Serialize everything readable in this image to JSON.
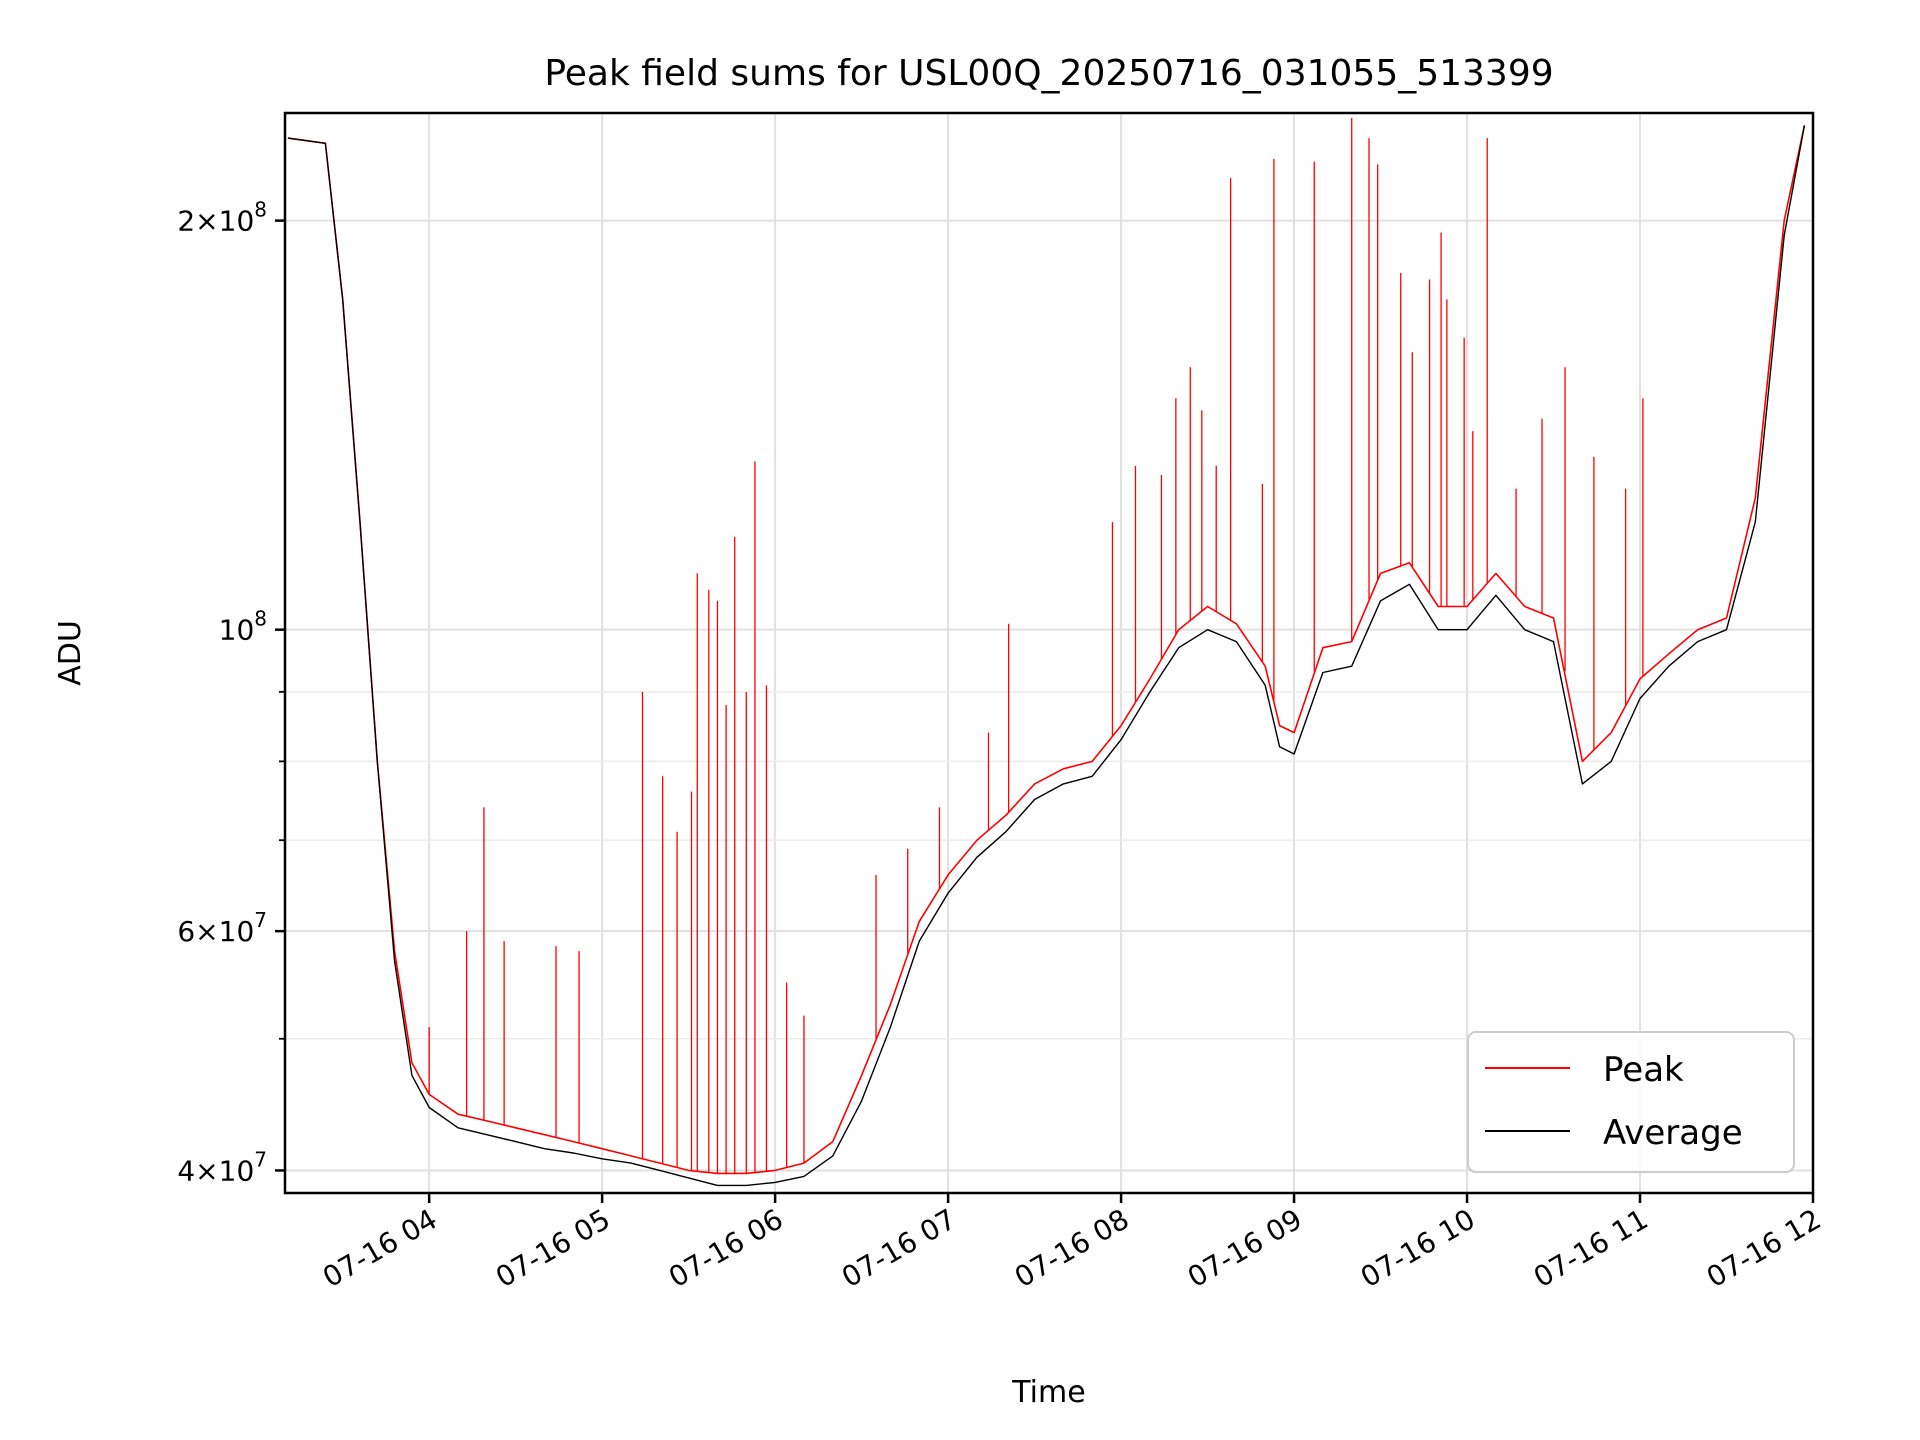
{
  "chart_data": {
    "type": "line",
    "title": "Peak field sums for USL00Q_20250716_031055_513399",
    "xlabel": "Time",
    "ylabel": "ADU",
    "x_scale": "time",
    "y_scale": "log",
    "xlim": [
      "2025-07-16 03:10",
      "2025-07-16 12:00"
    ],
    "ylim": [
      38500000,
      240000000
    ],
    "x_ticks": [
      {
        "time": "2025-07-16 04:00",
        "label": "07-16 04"
      },
      {
        "time": "2025-07-16 05:00",
        "label": "07-16 05"
      },
      {
        "time": "2025-07-16 06:00",
        "label": "07-16 06"
      },
      {
        "time": "2025-07-16 07:00",
        "label": "07-16 07"
      },
      {
        "time": "2025-07-16 08:00",
        "label": "07-16 08"
      },
      {
        "time": "2025-07-16 09:00",
        "label": "07-16 09"
      },
      {
        "time": "2025-07-16 10:00",
        "label": "07-16 10"
      },
      {
        "time": "2025-07-16 11:00",
        "label": "07-16 11"
      },
      {
        "time": "2025-07-16 12:00",
        "label": "07-16 12"
      }
    ],
    "y_major_ticks": [
      {
        "value": 40000000,
        "mantissa": "4",
        "exponent": "7"
      },
      {
        "value": 60000000,
        "mantissa": "6",
        "exponent": "7"
      },
      {
        "value": 100000000,
        "mantissa": "",
        "exponent": "8"
      },
      {
        "value": 200000000,
        "mantissa": "2",
        "exponent": "8"
      }
    ],
    "y_minor_gridlines": [
      50000000,
      70000000,
      80000000,
      90000000
    ],
    "grid": true,
    "legend_position": "lower-right",
    "series": [
      {
        "name": "Peak",
        "color": "#ff0000",
        "x": [
          "2025-07-16 03:11",
          "2025-07-16 03:24",
          "2025-07-16 03:30",
          "2025-07-16 03:36",
          "2025-07-16 03:42",
          "2025-07-16 03:48",
          "2025-07-16 03:54",
          "2025-07-16 04:00",
          "2025-07-16 04:10",
          "2025-07-16 04:20",
          "2025-07-16 04:30",
          "2025-07-16 04:40",
          "2025-07-16 04:50",
          "2025-07-16 05:00",
          "2025-07-16 05:10",
          "2025-07-16 05:20",
          "2025-07-16 05:30",
          "2025-07-16 05:40",
          "2025-07-16 05:50",
          "2025-07-16 06:00",
          "2025-07-16 06:10",
          "2025-07-16 06:20",
          "2025-07-16 06:30",
          "2025-07-16 06:40",
          "2025-07-16 06:50",
          "2025-07-16 07:00",
          "2025-07-16 07:10",
          "2025-07-16 07:20",
          "2025-07-16 07:30",
          "2025-07-16 07:40",
          "2025-07-16 07:50",
          "2025-07-16 08:00",
          "2025-07-16 08:10",
          "2025-07-16 08:20",
          "2025-07-16 08:30",
          "2025-07-16 08:40",
          "2025-07-16 08:50",
          "2025-07-16 08:55",
          "2025-07-16 09:00",
          "2025-07-16 09:10",
          "2025-07-16 09:20",
          "2025-07-16 09:30",
          "2025-07-16 09:40",
          "2025-07-16 09:50",
          "2025-07-16 10:00",
          "2025-07-16 10:10",
          "2025-07-16 10:20",
          "2025-07-16 10:30",
          "2025-07-16 10:40",
          "2025-07-16 10:50",
          "2025-07-16 11:00",
          "2025-07-16 11:10",
          "2025-07-16 11:20",
          "2025-07-16 11:30",
          "2025-07-16 11:40",
          "2025-07-16 11:50",
          "2025-07-16 11:57"
        ],
        "values": [
          230000000,
          228000000,
          175000000,
          120000000,
          80000000,
          58000000,
          48000000,
          45500000,
          44000000,
          43500000,
          43000000,
          42500000,
          42000000,
          41500000,
          41000000,
          40500000,
          40000000,
          39800000,
          39800000,
          40000000,
          40500000,
          42000000,
          47000000,
          53000000,
          61000000,
          66000000,
          70000000,
          73000000,
          77000000,
          79000000,
          80000000,
          85000000,
          92000000,
          100000000,
          104000000,
          101000000,
          94000000,
          85000000,
          84000000,
          97000000,
          98000000,
          110000000,
          112000000,
          104000000,
          104000000,
          110000000,
          104000000,
          102000000,
          80000000,
          84000000,
          92000000,
          96000000,
          100000000,
          102000000,
          125000000,
          200000000,
          235000000
        ],
        "spikes": [
          {
            "x": "2025-07-16 04:00",
            "y": 51000000
          },
          {
            "x": "2025-07-16 04:13",
            "y": 60000000
          },
          {
            "x": "2025-07-16 04:19",
            "y": 74000000
          },
          {
            "x": "2025-07-16 04:26",
            "y": 59000000
          },
          {
            "x": "2025-07-16 04:44",
            "y": 58500000
          },
          {
            "x": "2025-07-16 04:52",
            "y": 58000000
          },
          {
            "x": "2025-07-16 05:14",
            "y": 90000000
          },
          {
            "x": "2025-07-16 05:21",
            "y": 78000000
          },
          {
            "x": "2025-07-16 05:26",
            "y": 71000000
          },
          {
            "x": "2025-07-16 05:31",
            "y": 76000000
          },
          {
            "x": "2025-07-16 05:33",
            "y": 110000000
          },
          {
            "x": "2025-07-16 05:37",
            "y": 107000000
          },
          {
            "x": "2025-07-16 05:40",
            "y": 105000000
          },
          {
            "x": "2025-07-16 05:43",
            "y": 88000000
          },
          {
            "x": "2025-07-16 05:46",
            "y": 117000000
          },
          {
            "x": "2025-07-16 05:50",
            "y": 90000000
          },
          {
            "x": "2025-07-16 05:53",
            "y": 133000000
          },
          {
            "x": "2025-07-16 05:57",
            "y": 91000000
          },
          {
            "x": "2025-07-16 06:04",
            "y": 55000000
          },
          {
            "x": "2025-07-16 06:10",
            "y": 52000000
          },
          {
            "x": "2025-07-16 06:35",
            "y": 66000000
          },
          {
            "x": "2025-07-16 06:46",
            "y": 69000000
          },
          {
            "x": "2025-07-16 06:57",
            "y": 74000000
          },
          {
            "x": "2025-07-16 07:14",
            "y": 84000000
          },
          {
            "x": "2025-07-16 07:21",
            "y": 101000000
          },
          {
            "x": "2025-07-16 07:57",
            "y": 120000000
          },
          {
            "x": "2025-07-16 08:05",
            "y": 132000000
          },
          {
            "x": "2025-07-16 08:14",
            "y": 130000000
          },
          {
            "x": "2025-07-16 08:19",
            "y": 148000000
          },
          {
            "x": "2025-07-16 08:24",
            "y": 156000000
          },
          {
            "x": "2025-07-16 08:28",
            "y": 145000000
          },
          {
            "x": "2025-07-16 08:33",
            "y": 132000000
          },
          {
            "x": "2025-07-16 08:38",
            "y": 215000000
          },
          {
            "x": "2025-07-16 08:49",
            "y": 128000000
          },
          {
            "x": "2025-07-16 08:53",
            "y": 222000000
          },
          {
            "x": "2025-07-16 09:07",
            "y": 221000000
          },
          {
            "x": "2025-07-16 09:20",
            "y": 238000000
          },
          {
            "x": "2025-07-16 09:26",
            "y": 230000000
          },
          {
            "x": "2025-07-16 09:29",
            "y": 220000000
          },
          {
            "x": "2025-07-16 09:37",
            "y": 183000000
          },
          {
            "x": "2025-07-16 09:41",
            "y": 160000000
          },
          {
            "x": "2025-07-16 09:47",
            "y": 181000000
          },
          {
            "x": "2025-07-16 09:51",
            "y": 196000000
          },
          {
            "x": "2025-07-16 09:53",
            "y": 175000000
          },
          {
            "x": "2025-07-16 09:59",
            "y": 164000000
          },
          {
            "x": "2025-07-16 10:02",
            "y": 140000000
          },
          {
            "x": "2025-07-16 10:07",
            "y": 230000000
          },
          {
            "x": "2025-07-16 10:17",
            "y": 127000000
          },
          {
            "x": "2025-07-16 10:26",
            "y": 143000000
          },
          {
            "x": "2025-07-16 10:34",
            "y": 156000000
          },
          {
            "x": "2025-07-16 10:44",
            "y": 134000000
          },
          {
            "x": "2025-07-16 10:55",
            "y": 127000000
          },
          {
            "x": "2025-07-16 11:01",
            "y": 148000000
          }
        ]
      },
      {
        "name": "Average",
        "color": "#000000",
        "x": [
          "2025-07-16 03:11",
          "2025-07-16 03:24",
          "2025-07-16 03:30",
          "2025-07-16 03:36",
          "2025-07-16 03:42",
          "2025-07-16 03:48",
          "2025-07-16 03:54",
          "2025-07-16 04:00",
          "2025-07-16 04:10",
          "2025-07-16 04:20",
          "2025-07-16 04:30",
          "2025-07-16 04:40",
          "2025-07-16 04:50",
          "2025-07-16 05:00",
          "2025-07-16 05:10",
          "2025-07-16 05:20",
          "2025-07-16 05:30",
          "2025-07-16 05:40",
          "2025-07-16 05:50",
          "2025-07-16 06:00",
          "2025-07-16 06:10",
          "2025-07-16 06:20",
          "2025-07-16 06:30",
          "2025-07-16 06:40",
          "2025-07-16 06:50",
          "2025-07-16 07:00",
          "2025-07-16 07:10",
          "2025-07-16 07:20",
          "2025-07-16 07:30",
          "2025-07-16 07:40",
          "2025-07-16 07:50",
          "2025-07-16 08:00",
          "2025-07-16 08:10",
          "2025-07-16 08:20",
          "2025-07-16 08:30",
          "2025-07-16 08:40",
          "2025-07-16 08:50",
          "2025-07-16 08:55",
          "2025-07-16 09:00",
          "2025-07-16 09:10",
          "2025-07-16 09:20",
          "2025-07-16 09:30",
          "2025-07-16 09:40",
          "2025-07-16 09:50",
          "2025-07-16 10:00",
          "2025-07-16 10:10",
          "2025-07-16 10:20",
          "2025-07-16 10:30",
          "2025-07-16 10:40",
          "2025-07-16 10:50",
          "2025-07-16 11:00",
          "2025-07-16 11:10",
          "2025-07-16 11:20",
          "2025-07-16 11:30",
          "2025-07-16 11:40",
          "2025-07-16 11:50",
          "2025-07-16 11:57"
        ],
        "values": [
          230000000,
          228000000,
          175000000,
          120000000,
          80000000,
          57000000,
          47000000,
          44500000,
          43000000,
          42500000,
          42000000,
          41500000,
          41200000,
          40800000,
          40500000,
          40000000,
          39500000,
          39000000,
          39000000,
          39200000,
          39600000,
          41000000,
          45000000,
          51000000,
          59000000,
          64000000,
          68000000,
          71000000,
          75000000,
          77000000,
          78000000,
          83000000,
          90000000,
          97000000,
          100000000,
          98000000,
          91000000,
          82000000,
          81000000,
          93000000,
          94000000,
          105000000,
          108000000,
          100000000,
          100000000,
          106000000,
          100000000,
          98000000,
          77000000,
          80000000,
          89000000,
          94000000,
          98000000,
          100000000,
          120000000,
          195000000,
          235000000
        ]
      }
    ]
  }
}
